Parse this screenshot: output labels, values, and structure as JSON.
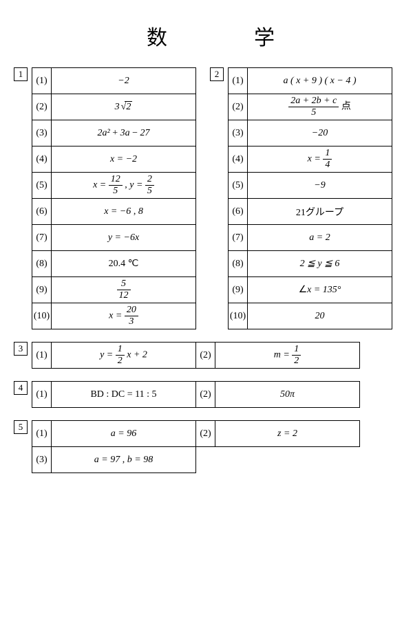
{
  "title": "数　学",
  "section1": {
    "num": "1",
    "items": [
      {
        "idx": "(1)",
        "ans": "−2"
      },
      {
        "idx": "(2)",
        "ans": "3√2"
      },
      {
        "idx": "(3)",
        "ans": "2a² + 3a − 27"
      },
      {
        "idx": "(4)",
        "ans": "x = −2"
      },
      {
        "idx": "(5)",
        "ans": "x = 12/5 , y = 2/5"
      },
      {
        "idx": "(6)",
        "ans": "x = −6 , 8"
      },
      {
        "idx": "(7)",
        "ans": "y = −6x"
      },
      {
        "idx": "(8)",
        "ans": "20.4 ℃"
      },
      {
        "idx": "(9)",
        "ans": "5/12"
      },
      {
        "idx": "(10)",
        "ans": "x = 20/3"
      }
    ]
  },
  "section2": {
    "num": "2",
    "items": [
      {
        "idx": "(1)",
        "ans": "a(x+9)(x−4)"
      },
      {
        "idx": "(2)",
        "ans": "(2a+2b+c)/5 点"
      },
      {
        "idx": "(3)",
        "ans": "−20"
      },
      {
        "idx": "(4)",
        "ans": "x = 1/4"
      },
      {
        "idx": "(5)",
        "ans": "−9"
      },
      {
        "idx": "(6)",
        "ans": "21グループ"
      },
      {
        "idx": "(7)",
        "ans": "a = 2"
      },
      {
        "idx": "(8)",
        "ans": "2 ≦ y ≦ 6"
      },
      {
        "idx": "(9)",
        "ans": "∠x = 135°"
      },
      {
        "idx": "(10)",
        "ans": "20"
      }
    ]
  },
  "section3": {
    "num": "3",
    "items": [
      {
        "idx": "(1)",
        "ans": "y = 1/2 x + 2"
      },
      {
        "idx": "(2)",
        "ans": "m = 1/2"
      }
    ]
  },
  "section4": {
    "num": "4",
    "items": [
      {
        "idx": "(1)",
        "ans": "BD : DC = 11 : 5"
      },
      {
        "idx": "(2)",
        "ans": "50π"
      }
    ]
  },
  "section5": {
    "num": "5",
    "items": [
      {
        "idx": "(1)",
        "ans": "a = 96"
      },
      {
        "idx": "(2)",
        "ans": "z = 2"
      },
      {
        "idx": "(3)",
        "ans": "a = 97 , b = 98"
      }
    ]
  },
  "labels": {
    "idx1": "(1)",
    "idx2": "(2)",
    "idx3": "(3)",
    "idx4": "(4)",
    "idx5": "(5)",
    "idx6": "(6)",
    "idx7": "(7)",
    "idx8": "(8)",
    "idx9": "(9)",
    "idx10": "(10)"
  }
}
